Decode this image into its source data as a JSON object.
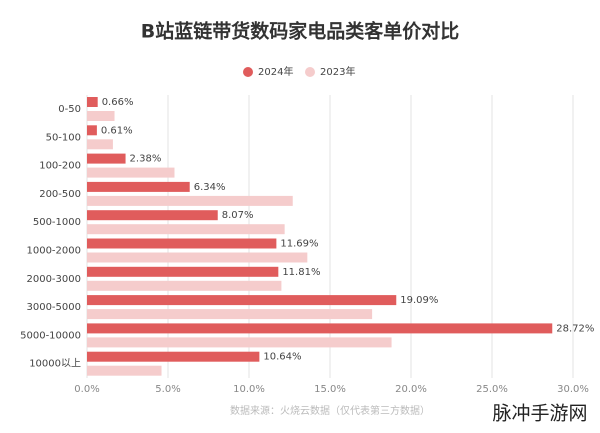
{
  "chart_data": {
    "type": "hbar",
    "title": "B站蓝链带货数码家电品类客单价对比",
    "categories": [
      "0-50",
      "50-100",
      "100-200",
      "200-500",
      "500-1000",
      "1000-2000",
      "2000-3000",
      "3000-5000",
      "5000-10000",
      "10000以上"
    ],
    "series": [
      {
        "name": "2024年",
        "color": "#e05c5c",
        "values": [
          0.66,
          0.61,
          2.38,
          6.34,
          8.07,
          11.69,
          11.81,
          19.09,
          28.72,
          10.64
        ],
        "value_labels": [
          "0.66%",
          "0.61%",
          "2.38%",
          "6.34%",
          "8.07%",
          "11.69%",
          "11.81%",
          "19.09%",
          "28.72%",
          "10.64%"
        ]
      },
      {
        "name": "2023年",
        "color": "#f5cccc",
        "values": [
          1.7,
          1.6,
          5.4,
          12.7,
          12.2,
          13.6,
          12.0,
          17.6,
          18.8,
          4.6
        ]
      }
    ],
    "xlim": [
      0,
      30
    ],
    "xticks": [
      {
        "value": 0,
        "label": "0.0%"
      },
      {
        "value": 5,
        "label": "5.0%"
      },
      {
        "value": 10,
        "label": "10.0%"
      },
      {
        "value": 15,
        "label": "15.0%"
      },
      {
        "value": 20,
        "label": "20.0%"
      },
      {
        "value": 25,
        "label": "25.0%"
      },
      {
        "value": 30,
        "label": "30.0%"
      }
    ],
    "grid": true,
    "legend": "top",
    "source": "数据来源：火烧云数据（仅代表第三方数据）",
    "watermark": "脉冲手游网"
  }
}
